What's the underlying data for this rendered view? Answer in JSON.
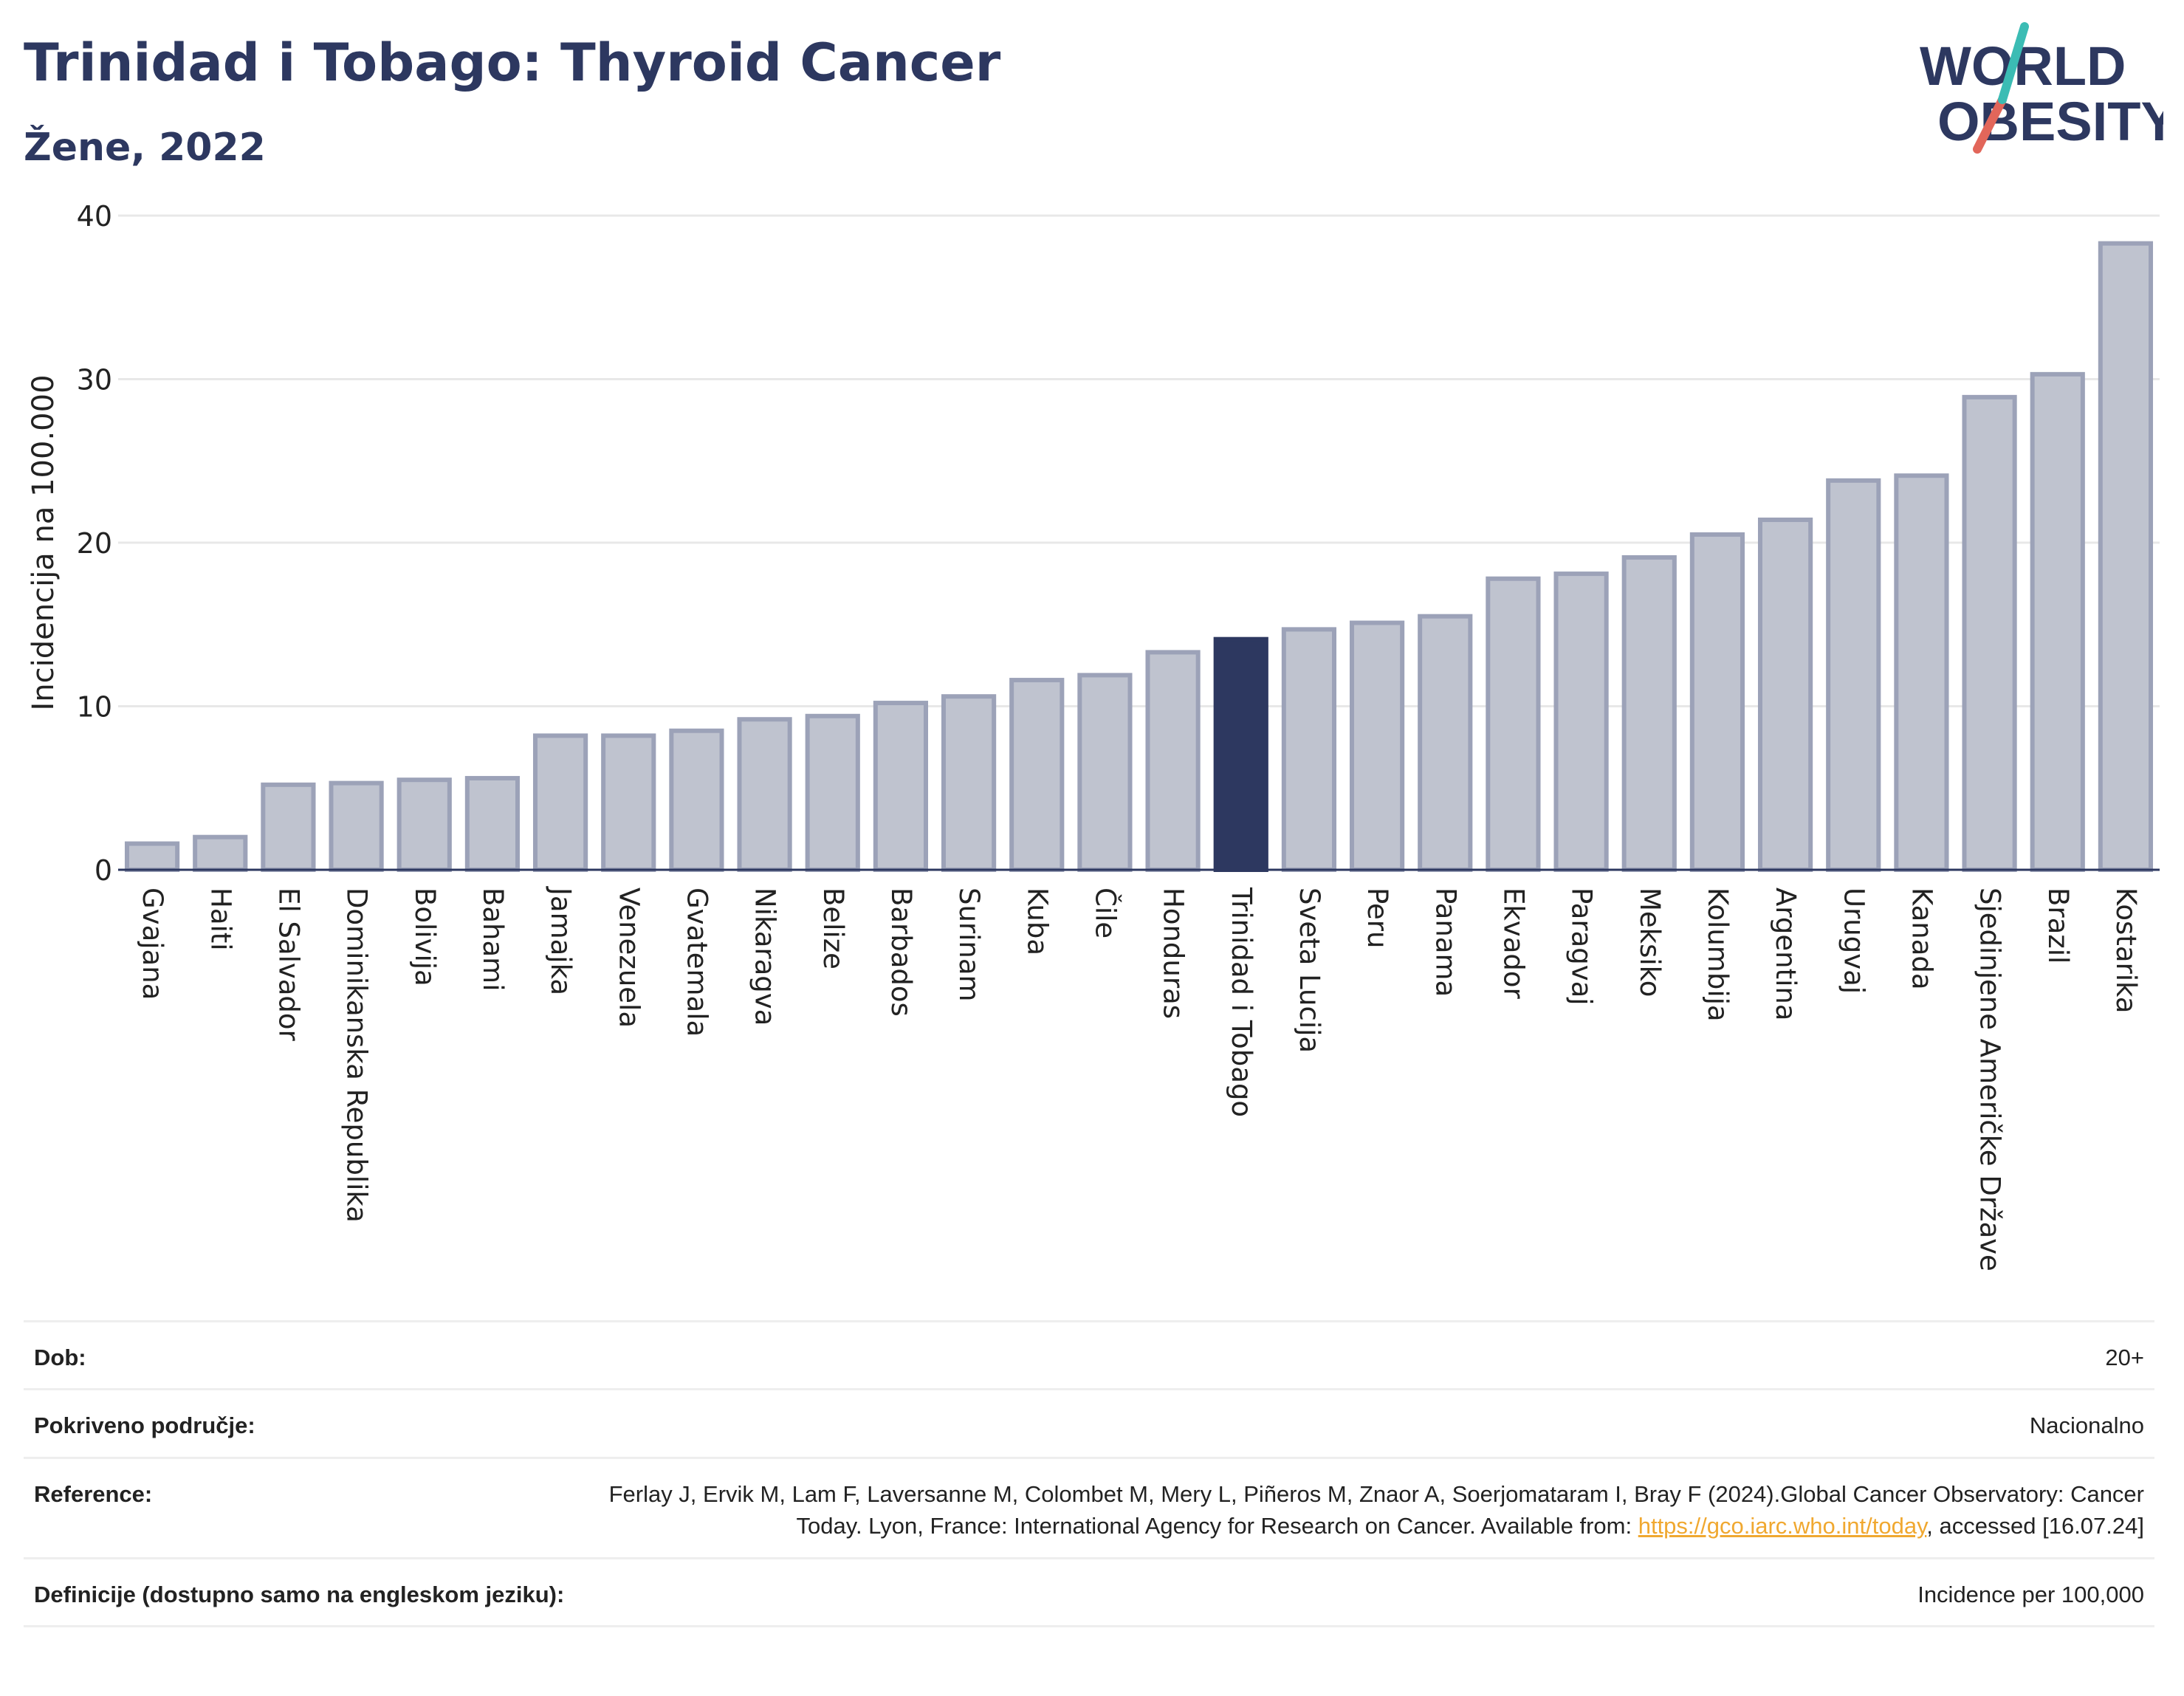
{
  "header": {
    "title": "Trinidad i Tobago: Thyroid Cancer",
    "subtitle": "Žene, 2022"
  },
  "logo": {
    "line1": "WORLD",
    "line2": "OBESITY",
    "colors": {
      "text": "#2d3860",
      "slash_teal": "#3bbcb4",
      "slash_red": "#e2665a"
    }
  },
  "chart_data": {
    "type": "bar",
    "ylabel": "Incidencija na 100.000",
    "xlabel": "",
    "ylim": [
      0,
      40
    ],
    "yticks": [
      0,
      10,
      20,
      30,
      40
    ],
    "grid": true,
    "highlight": "Trinidad i Tobago",
    "colors": {
      "bar": "#bfc3cf",
      "bar_edge": "#9ca2b8",
      "highlight": "#2d3860"
    },
    "categories": [
      "Gvajana",
      "Haiti",
      "El Salvador",
      "Dominikanska Republika",
      "Bolivija",
      "Bahami",
      "Jamajka",
      "Venezuela",
      "Gvatemala",
      "Nikaragva",
      "Belize",
      "Barbados",
      "Surinam",
      "Kuba",
      "Čile",
      "Honduras",
      "Trinidad i Tobago",
      "Sveta Lucija",
      "Peru",
      "Panama",
      "Ekvador",
      "Paragvaj",
      "Meksiko",
      "Kolumbija",
      "Argentina",
      "Urugvaj",
      "Kanada",
      "Sjedinjene Američke Države",
      "Brazil",
      "Kostarika"
    ],
    "values": [
      1.6,
      2.0,
      5.2,
      5.3,
      5.5,
      5.6,
      8.2,
      8.2,
      8.5,
      9.2,
      9.4,
      10.2,
      10.6,
      11.6,
      11.9,
      13.3,
      14.1,
      14.7,
      15.1,
      15.5,
      17.8,
      18.1,
      19.1,
      20.5,
      21.4,
      23.8,
      24.1,
      28.9,
      30.3,
      38.3
    ]
  },
  "info": {
    "rows": [
      {
        "label": "Dob:",
        "value": "20+"
      },
      {
        "label": "Pokriveno područje:",
        "value": "Nacionalno"
      },
      {
        "label": "Reference:",
        "value_pre": "Ferlay J, Ervik M, Lam F, Laversanne M, Colombet M, Mery L, Piñeros M, Znaor A, Soerjomataram I, Bray F (2024).Global Cancer Observatory: Cancer Today. Lyon, France: International Agency for Research on Cancer. Available from: ",
        "link": "https://gco.iarc.who.int/today",
        "value_post": ", accessed [16.07.24]"
      },
      {
        "label": "Definicije (dostupno samo na engleskom jeziku):",
        "value": "Incidence per 100,000"
      }
    ]
  }
}
